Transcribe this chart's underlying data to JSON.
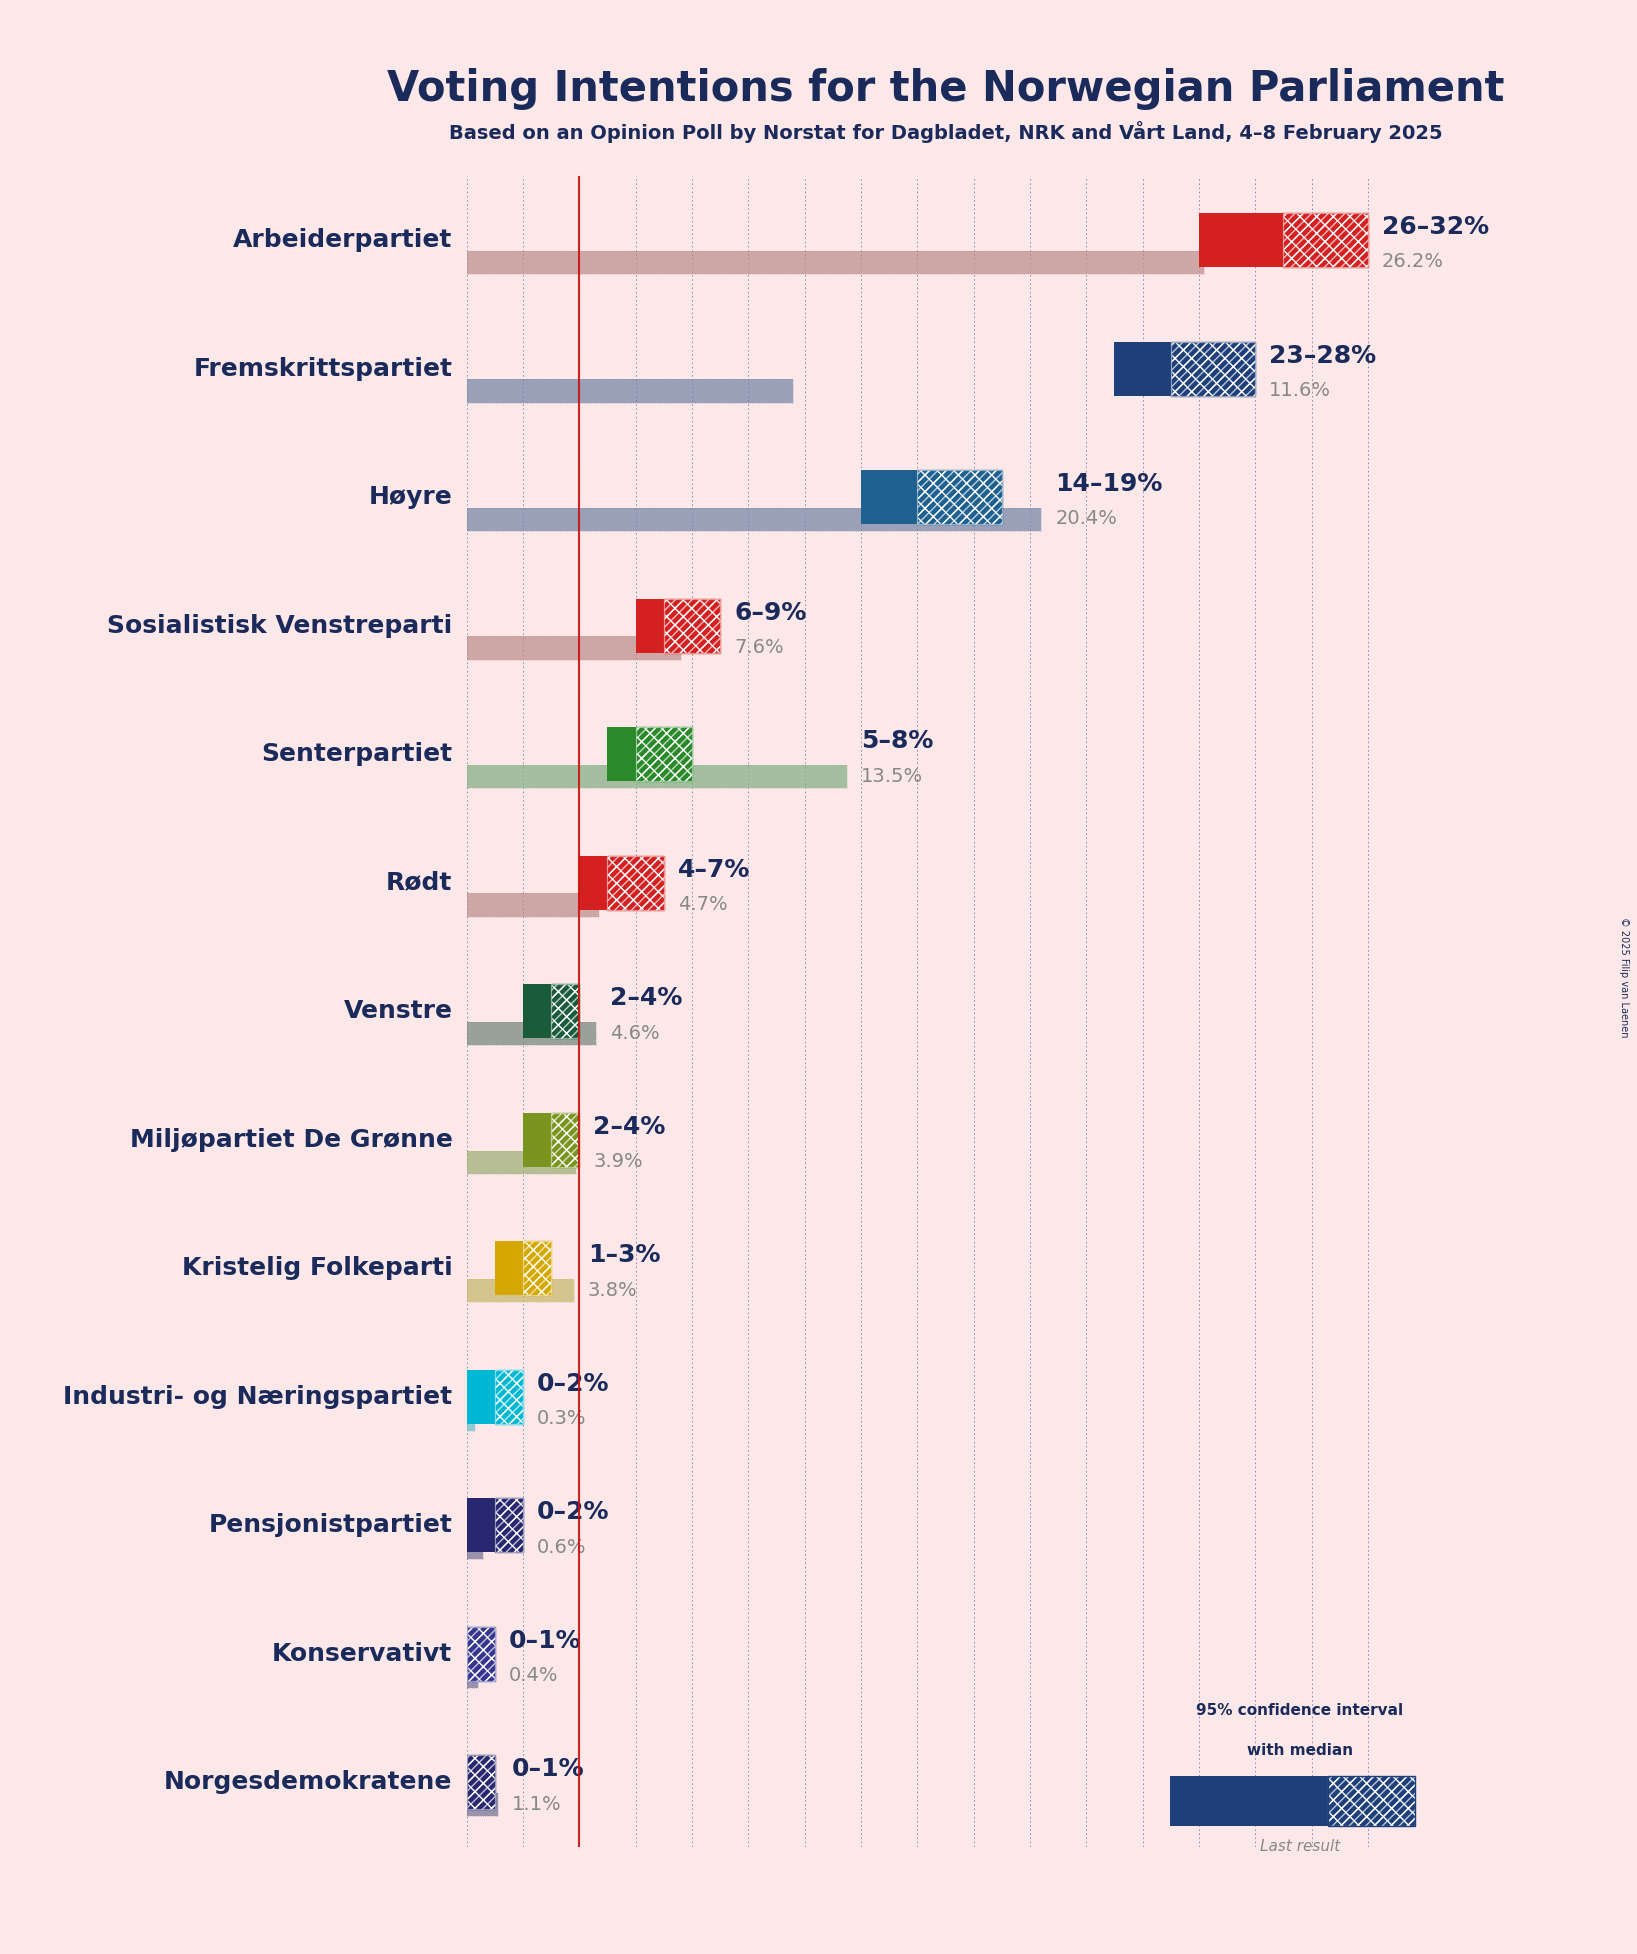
{
  "title": "Voting Intentions for the Norwegian Parliament",
  "subtitle": "Based on an Opinion Poll by Norstat for Dagbladet, NRK and Vårt Land, 4–8 February 2025",
  "copyright": "© 2025 Filip van Laenen",
  "background_color": "#fce8e8",
  "parties": [
    {
      "name": "Arbeiderpartiet",
      "low": 26,
      "high": 32,
      "median": 29,
      "last": 26.2,
      "color": "#d42020",
      "last_color": "#c09090"
    },
    {
      "name": "Fremskrittspartiet",
      "low": 23,
      "high": 28,
      "median": 25,
      "last": 11.6,
      "color": "#1e3f7a",
      "last_color": "#7888a8"
    },
    {
      "name": "Høyre",
      "low": 14,
      "high": 19,
      "median": 16,
      "last": 20.4,
      "color": "#1e6090",
      "last_color": "#7888a8"
    },
    {
      "name": "Sosialistisk Venstreparti",
      "low": 6,
      "high": 9,
      "median": 7,
      "last": 7.6,
      "color": "#d42020",
      "last_color": "#c09090"
    },
    {
      "name": "Senterpartiet",
      "low": 5,
      "high": 8,
      "median": 6,
      "last": 13.5,
      "color": "#2a8a2a",
      "last_color": "#88b088"
    },
    {
      "name": "Rødt",
      "low": 4,
      "high": 7,
      "median": 5,
      "last": 4.7,
      "color": "#d42020",
      "last_color": "#c09090"
    },
    {
      "name": "Venstre",
      "low": 2,
      "high": 4,
      "median": 3,
      "last": 4.6,
      "color": "#1a5c3a",
      "last_color": "#7a8a80"
    },
    {
      "name": "Miljøpartiet De Grønne",
      "low": 2,
      "high": 4,
      "median": 3,
      "last": 3.9,
      "color": "#7a9420",
      "last_color": "#a0b078"
    },
    {
      "name": "Kristelig Folkeparti",
      "low": 1,
      "high": 3,
      "median": 2,
      "last": 3.8,
      "color": "#d4a800",
      "last_color": "#c8b870"
    },
    {
      "name": "Industri- og Næringspartiet",
      "low": 0,
      "high": 2,
      "median": 1,
      "last": 0.3,
      "color": "#00b8d4",
      "last_color": "#70c0cc"
    },
    {
      "name": "Pensjonistpartiet",
      "low": 0,
      "high": 2,
      "median": 1,
      "last": 0.6,
      "color": "#282870",
      "last_color": "#787898"
    },
    {
      "name": "Konservativt",
      "low": 0,
      "high": 1,
      "median": 0,
      "last": 0.4,
      "color": "#363690",
      "last_color": "#787898"
    },
    {
      "name": "Norgesdemokratene",
      "low": 0,
      "high": 1,
      "median": 0,
      "last": 1.1,
      "color": "#282870",
      "last_color": "#787898"
    }
  ],
  "xlim": [
    0,
    34
  ],
  "label_color": "#1a2a5a",
  "range_fontsize": 18,
  "last_fontsize": 14,
  "party_fontsize": 18,
  "title_fontsize": 30,
  "subtitle_fontsize": 14,
  "red_line_x": 4
}
